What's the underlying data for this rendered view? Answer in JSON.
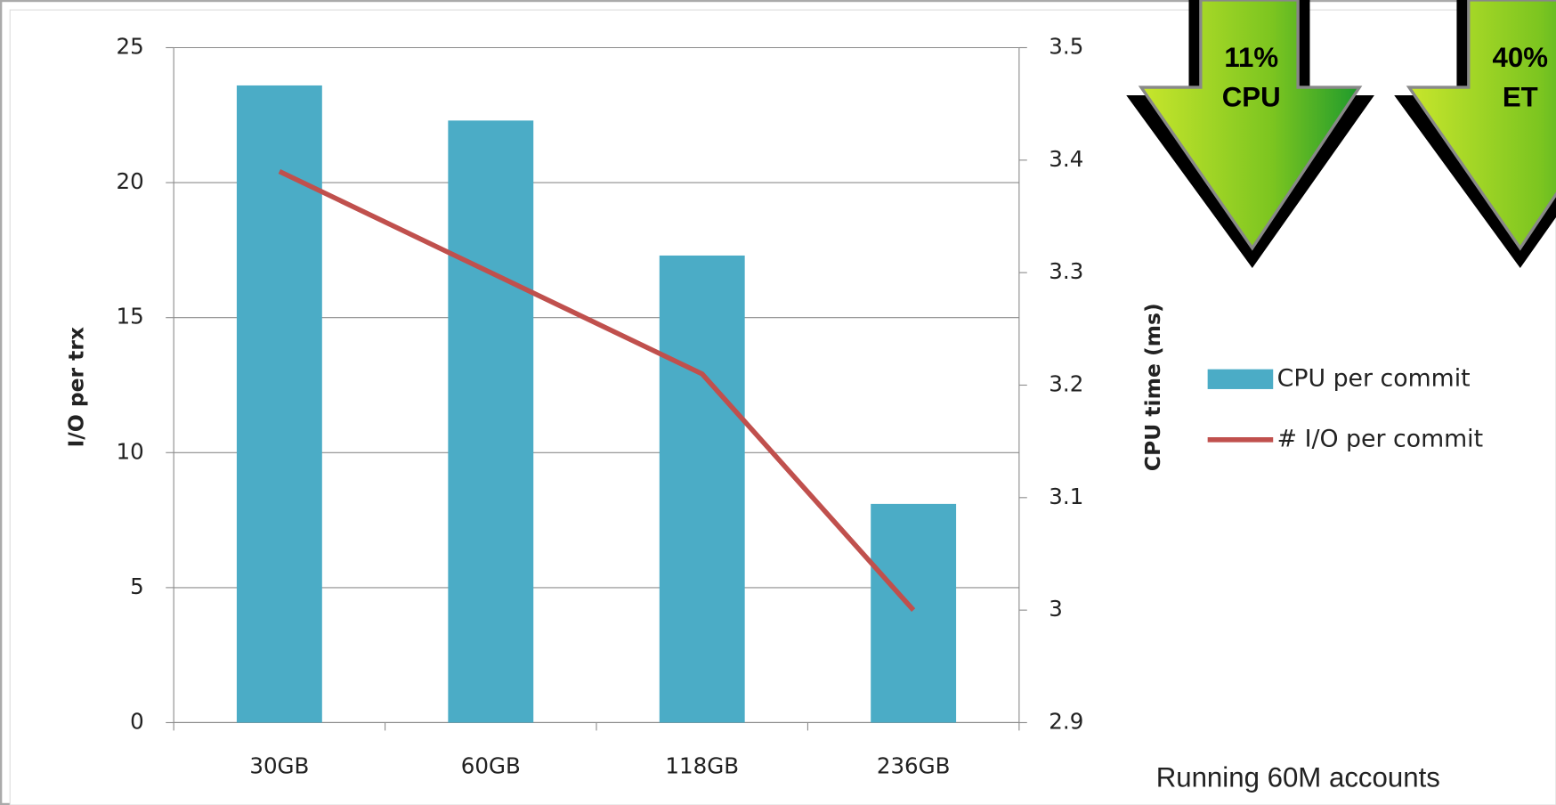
{
  "chart_data": {
    "type": "combo",
    "categories": [
      "30GB",
      "60GB",
      "118GB",
      "236GB"
    ],
    "series": [
      {
        "name": "CPU per commit",
        "type": "bar",
        "color": "#4bacc6",
        "values": [
          23.6,
          22.3,
          17.3,
          8.1
        ]
      },
      {
        "name": "# I/O per commit",
        "type": "line",
        "color": "#c0504d",
        "values": [
          3.39,
          3.3,
          3.21,
          3.0
        ],
        "axis": "y2"
      }
    ],
    "ylabel": "I/O per trx",
    "y2label": "CPU time (ms)",
    "ylim": [
      0,
      25
    ],
    "yticks": [
      0,
      5,
      10,
      15,
      20,
      25
    ],
    "y2lim": [
      2.9,
      3.5
    ],
    "y2ticks": [
      2.9,
      3,
      3.1,
      3.2,
      3.3,
      3.4,
      3.5
    ],
    "grid": true,
    "legend": "right",
    "annotations": [
      "11%",
      "CPU",
      "40%",
      "ET",
      "Running 60M accounts"
    ]
  }
}
